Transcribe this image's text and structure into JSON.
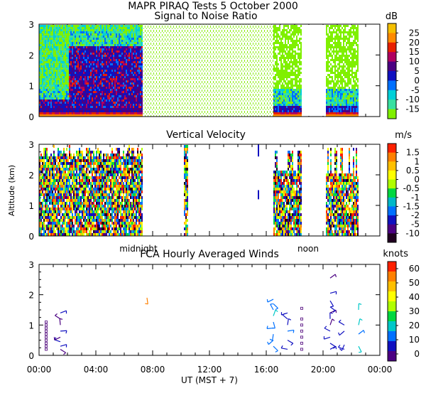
{
  "figure": {
    "title": "MAPR PIRAQ Tests  5 October 2000",
    "xlabel": "UT  (MST + 7)",
    "ylabel": "Altitude (km)",
    "midnight_label": "midnight",
    "noon_label": "noon"
  },
  "chart_data": [
    {
      "type": "heatmap",
      "title": "Signal to Noise Ratio",
      "units": "dB",
      "xlim": [
        0,
        24
      ],
      "ylim": [
        0,
        3
      ],
      "yticks": [
        0,
        1,
        2,
        3
      ],
      "colorbar_labels": [
        "25",
        "20",
        "15",
        "10",
        "5",
        "0",
        "-5",
        "-10",
        "-15"
      ],
      "colorbar_colors": [
        "#f5c000",
        "#ff8a00",
        "#e82000",
        "#b00060",
        "#4b0082",
        "#1010c0",
        "#0070ff",
        "#00d0d8",
        "#38e0a0",
        "#80f000"
      ],
      "data_segments": [
        {
          "start_hr": 0.0,
          "end_hr": 7.3,
          "character": "strong echoes; high SNR below 2.5 km from 2 to 7 UT"
        },
        {
          "start_hr": 7.3,
          "end_hr": 16.5,
          "character": "weak, about -15 dB (noise)"
        },
        {
          "start_hr": 16.5,
          "end_hr": 18.5,
          "character": "moderate, enhanced near ground"
        },
        {
          "start_hr": 20.2,
          "end_hr": 22.5,
          "character": "moderate, enhanced near ground"
        }
      ],
      "gaps_hr": [
        [
          18.5,
          20.2
        ]
      ]
    },
    {
      "type": "heatmap",
      "title": "Vertical Velocity",
      "units": "m/s",
      "xlim": [
        0,
        24
      ],
      "ylim": [
        0,
        3
      ],
      "yticks": [
        0,
        1,
        2,
        3
      ],
      "colorbar_labels": [
        "1.5",
        "1",
        "0.5",
        "0",
        "-0.5",
        "-1",
        "-1.5",
        "-2",
        "-5",
        "-10"
      ],
      "colorbar_colors": [
        "#ff2000",
        "#ff8000",
        "#ffc000",
        "#ffff00",
        "#b0ff00",
        "#00d840",
        "#00b8c8",
        "#0070ff",
        "#1010c0",
        "#4b0082",
        "#200020"
      ],
      "data_segments": [
        {
          "start_hr": 0.0,
          "end_hr": 7.3,
          "character": "turbulent, mixed up/down velocities"
        },
        {
          "start_hr": 10.2,
          "end_hr": 10.5,
          "character": "isolated column"
        },
        {
          "start_hr": 16.5,
          "end_hr": 18.5,
          "character": "mixed velocities"
        },
        {
          "start_hr": 20.2,
          "end_hr": 22.5,
          "character": "mixed velocities"
        }
      ]
    },
    {
      "type": "scatter",
      "title": "FCA Hourly Averaged Winds",
      "units": "knots",
      "xlim": [
        0,
        24
      ],
      "ylim": [
        0,
        3
      ],
      "yticks": [
        0,
        1,
        2,
        3
      ],
      "xticks": [
        "00:00",
        "04:00",
        "08:00",
        "12:00",
        "16:00",
        "20:00",
        "00:00"
      ],
      "colorbar_labels": [
        "60",
        "50",
        "40",
        "30",
        "20",
        "10",
        "0"
      ],
      "colorbar_colors": [
        "#ff2000",
        "#ff8000",
        "#ffc000",
        "#ffff00",
        "#b0ff00",
        "#00d840",
        "#00c8c8",
        "#0070ff",
        "#1010c0",
        "#4b0082"
      ],
      "wind_profiles": [
        {
          "time_hr": 0.5,
          "heights_km": [
            0.2,
            0.3,
            0.4,
            0.5,
            0.6,
            0.7,
            0.8,
            0.9,
            1.0,
            1.1
          ],
          "speed_kt": 0
        },
        {
          "time_hr": 1.5,
          "heights_km": [
            0.2,
            0.3,
            0.45,
            0.6,
            0.8,
            1.0,
            1.2,
            1.4
          ],
          "speed_kt": 3
        },
        {
          "time_hr": 7.6,
          "heights_km": [
            1.9
          ],
          "speed_kt": 50
        },
        {
          "time_hr": 16.5,
          "heights_km": [
            0.3,
            0.5,
            0.7,
            0.9,
            1.1,
            1.3,
            1.5,
            1.7,
            1.85
          ],
          "speed_kt": 15
        },
        {
          "time_hr": 17.5,
          "heights_km": [
            0.2,
            0.5,
            0.8,
            1.0,
            1.2,
            1.4
          ],
          "speed_kt": 8
        },
        {
          "time_hr": 18.5,
          "heights_km": [
            0.2,
            0.4,
            0.6,
            0.8,
            1.0,
            1.2,
            1.55
          ],
          "speed_kt": 0
        },
        {
          "time_hr": 20.5,
          "heights_km": [
            0.2,
            0.4,
            0.6,
            0.8,
            1.0,
            1.2,
            1.4,
            1.6,
            1.8,
            2.05,
            2.55
          ],
          "speed_kt": 5
        },
        {
          "time_hr": 21.5,
          "heights_km": [
            0.2,
            0.35,
            0.8,
            1.0
          ],
          "speed_kt": 6
        },
        {
          "time_hr": 22.5,
          "heights_km": [
            0.3,
            0.7,
            1.0,
            1.5
          ],
          "speed_kt": 18
        }
      ]
    }
  ]
}
